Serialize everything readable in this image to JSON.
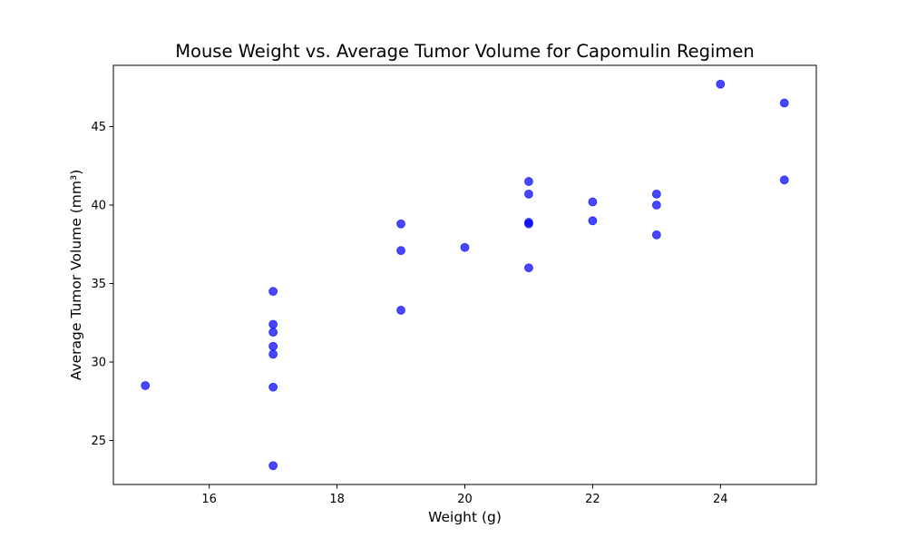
{
  "chart_data": {
    "type": "scatter",
    "title": "Mouse Weight vs. Average Tumor Volume for Capomulin Regimen",
    "xlabel": "Weight (g)",
    "ylabel": "Average Tumor Volume (mm³)",
    "xlim": [
      14.5,
      25.5
    ],
    "ylim": [
      22.2,
      48.9
    ],
    "xticks": [
      16,
      18,
      20,
      22,
      24
    ],
    "yticks": [
      25,
      30,
      35,
      40,
      45
    ],
    "grid": false,
    "marker_color": "#0000ff",
    "points": [
      {
        "x": 15,
        "y": 28.5
      },
      {
        "x": 17,
        "y": 34.5
      },
      {
        "x": 17,
        "y": 32.4
      },
      {
        "x": 17,
        "y": 31.9
      },
      {
        "x": 17,
        "y": 31.0
      },
      {
        "x": 17,
        "y": 30.5
      },
      {
        "x": 17,
        "y": 28.4
      },
      {
        "x": 17,
        "y": 23.4
      },
      {
        "x": 19,
        "y": 38.8
      },
      {
        "x": 19,
        "y": 37.1
      },
      {
        "x": 19,
        "y": 33.3
      },
      {
        "x": 20,
        "y": 37.3
      },
      {
        "x": 21,
        "y": 41.5
      },
      {
        "x": 21,
        "y": 40.7
      },
      {
        "x": 21,
        "y": 38.9
      },
      {
        "x": 21,
        "y": 38.8
      },
      {
        "x": 21,
        "y": 36.0
      },
      {
        "x": 22,
        "y": 40.2
      },
      {
        "x": 22,
        "y": 39.0
      },
      {
        "x": 23,
        "y": 40.7
      },
      {
        "x": 23,
        "y": 40.0
      },
      {
        "x": 23,
        "y": 38.1
      },
      {
        "x": 24,
        "y": 47.7
      },
      {
        "x": 25,
        "y": 46.5
      },
      {
        "x": 25,
        "y": 41.6
      }
    ]
  }
}
